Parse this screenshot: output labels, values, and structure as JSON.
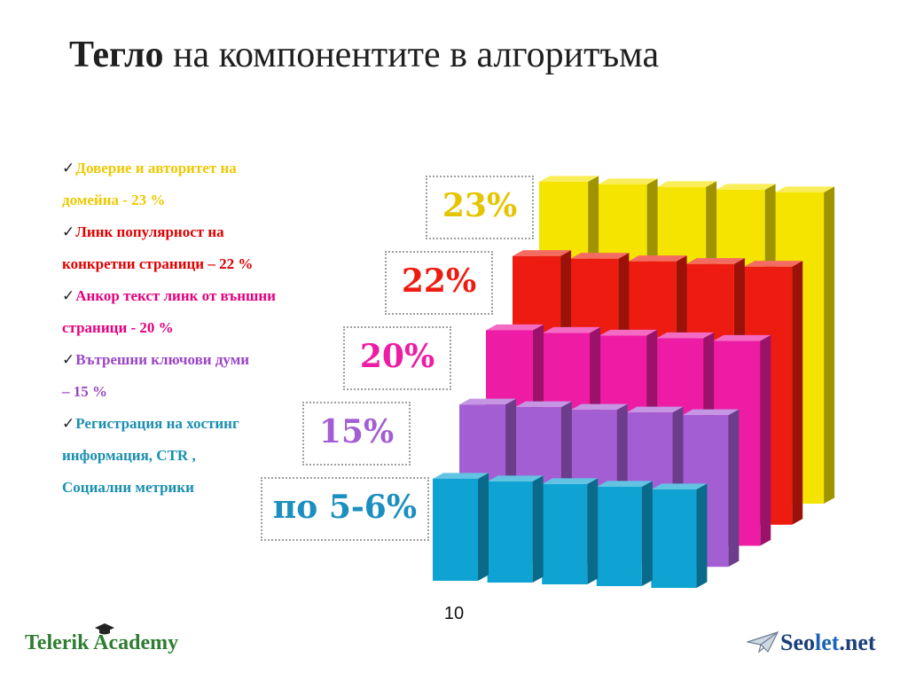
{
  "slide": {
    "title_bold": "Тегло",
    "title_rest": " на компонентите в алгоритъма",
    "page_number": "10"
  },
  "bullets": [
    {
      "lines": [
        "Доверие и авторитет на",
        "домейна  -  23 %"
      ],
      "color": "#f0c800"
    },
    {
      "lines": [
        "Линк популярност на",
        "конкретни страници – 22 %"
      ],
      "color": "#e00000"
    },
    {
      "lines": [
        "Анкор текст линк  от външни",
        "страници - 20 %"
      ],
      "color": "#e5007e"
    },
    {
      "lines": [
        "Вътрешни ключови думи",
        " – 15 %"
      ],
      "color": "#9b45c6"
    },
    {
      "lines": [
        "Регистрация на хостинг",
        "информация, CTR ,",
        "Социални метрики"
      ],
      "color": "#1a8fb0"
    }
  ],
  "chart_data": {
    "type": "bar",
    "series": [
      {
        "label": "23%",
        "value": 23,
        "color": "#f5e400"
      },
      {
        "label": "22%",
        "value": 22,
        "color": "#ee1b10"
      },
      {
        "label": "20%",
        "value": 20,
        "color": "#ee1ca4"
      },
      {
        "label": "15%",
        "value": 15,
        "color": "#a45ed4"
      },
      {
        "label": "по 5-6%",
        "value_range": [
          5,
          6
        ],
        "color": "#0ea3d2"
      }
    ],
    "columns_per_series": 5
  },
  "logos": {
    "left": "Telerik Academy",
    "right_parts": [
      "Seo",
      "let",
      ".net"
    ]
  }
}
